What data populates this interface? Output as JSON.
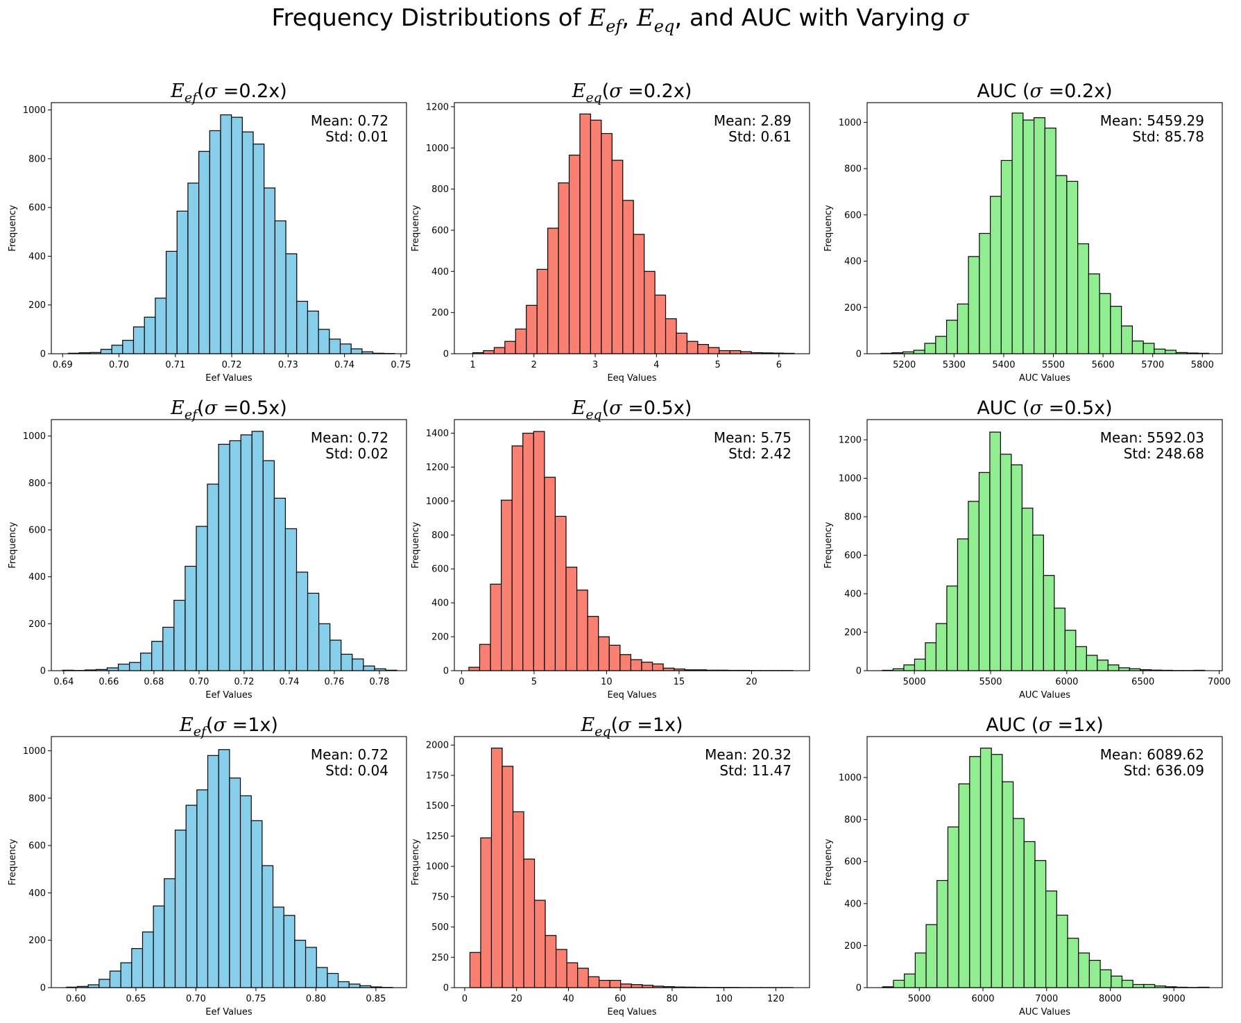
{
  "figure": {
    "title_parts": {
      "p1": "Frequency Distributions of ",
      "e": "E",
      "ef": "ef",
      "sep1": ", ",
      "eq": "eq",
      "p2": ", and AUC with Varying ",
      "sigma": "σ"
    }
  },
  "chart_data": [
    {
      "type": "bar",
      "title": "Eef(σ =0.2x)",
      "title_parts": {
        "E": "E",
        "sub": "ef",
        "sigma": "σ",
        "rest": " =0.2x)",
        "open": "(",
        "prefix": ""
      },
      "xlabel": "Eef Values",
      "ylabel": "Frequency",
      "xlim": [
        0.688,
        0.751
      ],
      "ylim": [
        0,
        1030
      ],
      "xticks": [
        0.69,
        0.7,
        0.71,
        0.72,
        0.73,
        0.74,
        0.75
      ],
      "xtick_labels": [
        "0.69",
        "0.70",
        "0.71",
        "0.72",
        "0.73",
        "0.74",
        "0.75"
      ],
      "yticks": [
        0,
        200,
        400,
        600,
        800,
        1000
      ],
      "bin_start": 0.691,
      "bin_width": 0.00193,
      "values": [
        2,
        4,
        5,
        18,
        35,
        55,
        110,
        150,
        228,
        420,
        585,
        700,
        830,
        915,
        980,
        970,
        910,
        860,
        680,
        545,
        410,
        215,
        175,
        100,
        60,
        40,
        20,
        8,
        2,
        1
      ],
      "color": "#87CEEB",
      "stats": {
        "mean": "Mean: 0.72",
        "std": "Std: 0.01"
      }
    },
    {
      "type": "bar",
      "title": "Eeq(σ =0.2x)",
      "title_parts": {
        "E": "E",
        "sub": "eq",
        "sigma": "σ",
        "rest": " =0.2x)",
        "open": "(",
        "prefix": ""
      },
      "xlabel": "Eeq Values",
      "ylabel": "Frequency",
      "xlim": [
        0.7,
        6.5
      ],
      "ylim": [
        0,
        1220
      ],
      "xticks": [
        1,
        2,
        3,
        4,
        5,
        6
      ],
      "xtick_labels": [
        "1",
        "2",
        "3",
        "4",
        "5",
        "6"
      ],
      "yticks": [
        0,
        200,
        400,
        600,
        800,
        1000,
        1200
      ],
      "bin_start": 1.0,
      "bin_width": 0.175,
      "values": [
        5,
        15,
        30,
        60,
        120,
        235,
        410,
        610,
        830,
        965,
        1165,
        1135,
        1070,
        940,
        745,
        580,
        400,
        285,
        170,
        100,
        60,
        45,
        30,
        15,
        15,
        10,
        5,
        4,
        3,
        2
      ],
      "color": "#FA8072",
      "stats": {
        "mean": "Mean: 2.89",
        "std": "Std: 0.61"
      }
    },
    {
      "type": "bar",
      "title": "AUC (σ =0.2x)",
      "title_parts": {
        "E": "",
        "sub": "",
        "sigma": "σ",
        "rest": " =0.2x)",
        "open": "(",
        "prefix": "AUC "
      },
      "xlabel": "AUC Values",
      "ylabel": "Frequency",
      "xlim": [
        5125,
        5840
      ],
      "ylim": [
        0,
        1085
      ],
      "xticks": [
        5200,
        5300,
        5400,
        5500,
        5600,
        5700,
        5800
      ],
      "xtick_labels": [
        "5200",
        "5300",
        "5400",
        "5500",
        "5600",
        "5700",
        "5800"
      ],
      "yticks": [
        0,
        200,
        400,
        600,
        800,
        1000
      ],
      "bin_start": 5153,
      "bin_width": 22,
      "values": [
        2,
        4,
        8,
        15,
        45,
        75,
        145,
        215,
        420,
        520,
        680,
        835,
        1040,
        1010,
        1020,
        975,
        770,
        745,
        475,
        345,
        260,
        205,
        120,
        55,
        45,
        20,
        15,
        5,
        3,
        2
      ],
      "color": "#90EE90",
      "stats": {
        "mean": "Mean: 5459.29",
        "std": "Std: 85.78"
      }
    },
    {
      "type": "bar",
      "title": "Eef(σ =0.5x)",
      "title_parts": {
        "E": "E",
        "sub": "ef",
        "sigma": "σ",
        "rest": " =0.5x)",
        "open": "(",
        "prefix": ""
      },
      "xlabel": "Eef Values",
      "ylabel": "Frequency",
      "xlim": [
        0.6345,
        0.792
      ],
      "ylim": [
        0,
        1070
      ],
      "xticks": [
        0.64,
        0.66,
        0.68,
        0.7,
        0.72,
        0.74,
        0.76,
        0.78
      ],
      "xtick_labels": [
        "0.64",
        "0.66",
        "0.68",
        "0.70",
        "0.72",
        "0.74",
        "0.76",
        "0.78"
      ],
      "yticks": [
        0,
        200,
        400,
        600,
        800,
        1000
      ],
      "bin_start": 0.6395,
      "bin_width": 0.00494,
      "values": [
        2,
        1,
        3,
        5,
        12,
        28,
        35,
        75,
        125,
        185,
        300,
        445,
        615,
        795,
        965,
        980,
        1005,
        1020,
        895,
        735,
        605,
        420,
        330,
        200,
        130,
        70,
        50,
        20,
        8,
        2
      ],
      "color": "#87CEEB",
      "stats": {
        "mean": "Mean: 0.72",
        "std": "Std: 0.02"
      }
    },
    {
      "type": "bar",
      "title": "Eeq(σ =0.5x)",
      "title_parts": {
        "E": "E",
        "sub": "eq",
        "sigma": "σ",
        "rest": " =0.5x)",
        "open": "(",
        "prefix": ""
      },
      "xlabel": "Eeq Values",
      "ylabel": "Frequency",
      "xlim": [
        -0.5,
        24.0
      ],
      "ylim": [
        0,
        1480
      ],
      "xticks": [
        0,
        5,
        10,
        15,
        20
      ],
      "xtick_labels": [
        "0",
        "5",
        "10",
        "15",
        "20"
      ],
      "yticks": [
        0,
        200,
        400,
        600,
        800,
        1000,
        1200,
        1400
      ],
      "bin_start": 0.5,
      "bin_width": 0.745,
      "values": [
        20,
        155,
        510,
        1005,
        1325,
        1400,
        1410,
        1140,
        910,
        610,
        475,
        320,
        200,
        150,
        95,
        65,
        50,
        40,
        15,
        10,
        5,
        5,
        3,
        3,
        2,
        2,
        1,
        1,
        1,
        1
      ],
      "color": "#FA8072",
      "stats": {
        "mean": "Mean: 5.75",
        "std": "Std: 2.42"
      }
    },
    {
      "type": "bar",
      "title": "AUC (σ =0.5x)",
      "title_parts": {
        "E": "",
        "sub": "",
        "sigma": "σ",
        "rest": " =0.5x)",
        "open": "(",
        "prefix": "AUC "
      },
      "xlabel": "AUC Values",
      "ylabel": "Frequency",
      "xlim": [
        4690,
        7020
      ],
      "ylim": [
        0,
        1305
      ],
      "xticks": [
        5000,
        5500,
        6000,
        6500,
        7000
      ],
      "xtick_labels": [
        "5000",
        "5500",
        "6000",
        "6500",
        "7000"
      ],
      "yticks": [
        0,
        200,
        400,
        600,
        800,
        1000,
        1200
      ],
      "bin_start": 4790,
      "bin_width": 70.5,
      "values": [
        2,
        10,
        30,
        60,
        145,
        245,
        440,
        685,
        880,
        1030,
        1240,
        1125,
        1070,
        845,
        705,
        495,
        325,
        210,
        125,
        80,
        55,
        30,
        15,
        10,
        5,
        3,
        2,
        1,
        1,
        2
      ],
      "color": "#90EE90",
      "stats": {
        "mean": "Mean: 5592.03",
        "std": "Std: 248.68"
      }
    },
    {
      "type": "bar",
      "title": "Eef(σ =1x)",
      "title_parts": {
        "E": "E",
        "sub": "ef",
        "sigma": "σ",
        "rest": " =1x)",
        "open": "(",
        "prefix": ""
      },
      "xlabel": "Eef Values",
      "ylabel": "Frequency",
      "xlim": [
        0.5795,
        0.8755
      ],
      "ylim": [
        0,
        1060
      ],
      "xticks": [
        0.6,
        0.65,
        0.7,
        0.75,
        0.8,
        0.85
      ],
      "xtick_labels": [
        "0.60",
        "0.65",
        "0.70",
        "0.75",
        "0.80",
        "0.85"
      ],
      "yticks": [
        0,
        200,
        400,
        600,
        800,
        1000
      ],
      "bin_start": 0.5921,
      "bin_width": 0.00906,
      "values": [
        2,
        5,
        12,
        35,
        70,
        105,
        165,
        235,
        345,
        460,
        665,
        770,
        835,
        980,
        1005,
        885,
        810,
        705,
        515,
        340,
        305,
        200,
        170,
        85,
        60,
        25,
        15,
        8,
        3,
        1
      ],
      "color": "#87CEEB",
      "stats": {
        "mean": "Mean: 0.72",
        "std": "Std: 0.04"
      }
    },
    {
      "type": "bar",
      "title": "Eeq(σ =1x)",
      "title_parts": {
        "E": "E",
        "sub": "eq",
        "sigma": "σ",
        "rest": " =1x)",
        "open": "(",
        "prefix": ""
      },
      "xlabel": "Eeq Values",
      "ylabel": "Frequency",
      "xlim": [
        -4.0,
        133.0
      ],
      "ylim": [
        0,
        2070
      ],
      "xticks": [
        0,
        20,
        40,
        60,
        80,
        100,
        120
      ],
      "xtick_labels": [
        "0",
        "20",
        "40",
        "60",
        "80",
        "100",
        "120"
      ],
      "yticks": [
        0,
        250,
        500,
        750,
        1000,
        1250,
        1500,
        1750,
        2000
      ],
      "bin_start": 2.0,
      "bin_width": 4.153,
      "values": [
        290,
        1235,
        1975,
        1825,
        1450,
        1060,
        720,
        430,
        315,
        205,
        160,
        90,
        60,
        60,
        30,
        25,
        20,
        12,
        8,
        5,
        4,
        3,
        2,
        2,
        2,
        1,
        1,
        1,
        1,
        1
      ],
      "color": "#FA8072",
      "stats": {
        "mean": "Mean: 20.32",
        "std": "Std: 11.47"
      }
    },
    {
      "type": "bar",
      "title": "AUC (σ =1x)",
      "title_parts": {
        "E": "",
        "sub": "",
        "sigma": "σ",
        "rest": " =1x)",
        "open": "(",
        "prefix": "AUC "
      },
      "xlabel": "AUC Values",
      "ylabel": "Frequency",
      "xlim": [
        4180,
        9760
      ],
      "ylim": [
        0,
        1195
      ],
      "xticks": [
        5000,
        6000,
        7000,
        8000,
        9000
      ],
      "xtick_labels": [
        "5000",
        "6000",
        "7000",
        "8000",
        "9000"
      ],
      "yticks": [
        0,
        200,
        400,
        600,
        800,
        1000
      ],
      "bin_start": 4423,
      "bin_width": 171,
      "values": [
        4,
        35,
        65,
        165,
        300,
        510,
        765,
        970,
        1100,
        1140,
        1110,
        980,
        805,
        695,
        605,
        460,
        345,
        235,
        165,
        130,
        85,
        55,
        35,
        15,
        15,
        8,
        4,
        2,
        1,
        2
      ],
      "color": "#90EE90",
      "stats": {
        "mean": "Mean: 6089.62",
        "std": "Std: 636.09"
      }
    }
  ]
}
